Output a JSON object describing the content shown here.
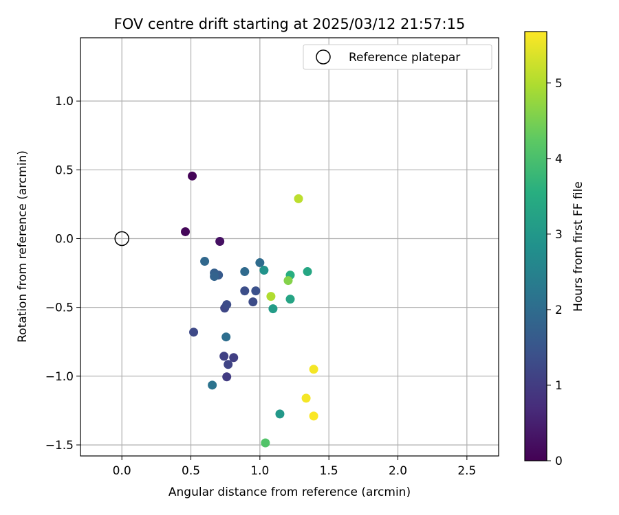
{
  "chart_data": {
    "type": "scatter",
    "title": "FOV centre drift starting at 2025/03/12 21:57:15",
    "xlabel": "Angular distance from reference (arcmin)",
    "ylabel": "Rotation from reference (arcmin)",
    "xlim": [
      -0.3,
      2.73
    ],
    "ylim": [
      -1.58,
      1.46
    ],
    "xticks": [
      0.0,
      0.5,
      1.0,
      1.5,
      2.0,
      2.5
    ],
    "xtick_labels": [
      "0.0",
      "0.5",
      "1.0",
      "1.5",
      "2.0",
      "2.5"
    ],
    "yticks": [
      -1.5,
      -1.0,
      -0.5,
      0.0,
      0.5,
      1.0
    ],
    "ytick_labels": [
      "−1.5",
      "−1.0",
      "−0.5",
      "0.0",
      "0.5",
      "1.0"
    ],
    "grid": true,
    "legend": {
      "position": "top-right",
      "entries": [
        "Reference platepar"
      ]
    },
    "reference_point": {
      "x": 0.0,
      "y": 0.0
    },
    "colorbar": {
      "label": "Hours from first FF file",
      "range": [
        0,
        5.68
      ],
      "ticks": [
        0,
        1,
        2,
        3,
        4,
        5
      ],
      "tick_labels": [
        "0",
        "1",
        "2",
        "3",
        "4",
        "5"
      ],
      "colormap": "viridis"
    },
    "points": [
      {
        "x": 0.51,
        "y": 0.455,
        "hours": 0.05
      },
      {
        "x": 0.46,
        "y": 0.05,
        "hours": 0.1
      },
      {
        "x": 0.71,
        "y": -0.02,
        "hours": 0.25
      },
      {
        "x": 0.76,
        "y": -1.005,
        "hours": 1.0
      },
      {
        "x": 0.81,
        "y": -0.865,
        "hours": 1.05
      },
      {
        "x": 0.74,
        "y": -0.855,
        "hours": 1.1
      },
      {
        "x": 0.77,
        "y": -0.915,
        "hours": 1.15
      },
      {
        "x": 0.52,
        "y": -0.68,
        "hours": 1.25
      },
      {
        "x": 0.745,
        "y": -0.505,
        "hours": 1.2
      },
      {
        "x": 0.76,
        "y": -0.48,
        "hours": 1.3
      },
      {
        "x": 0.95,
        "y": -0.46,
        "hours": 1.3
      },
      {
        "x": 0.89,
        "y": -0.38,
        "hours": 1.35
      },
      {
        "x": 0.97,
        "y": -0.38,
        "hours": 1.4
      },
      {
        "x": 0.7,
        "y": -0.265,
        "hours": 1.6
      },
      {
        "x": 0.67,
        "y": -0.25,
        "hours": 1.7
      },
      {
        "x": 0.67,
        "y": -0.275,
        "hours": 1.8
      },
      {
        "x": 0.6,
        "y": -0.165,
        "hours": 1.9
      },
      {
        "x": 0.89,
        "y": -0.24,
        "hours": 1.95
      },
      {
        "x": 1.0,
        "y": -0.175,
        "hours": 2.0
      },
      {
        "x": 0.755,
        "y": -0.715,
        "hours": 2.05
      },
      {
        "x": 0.655,
        "y": -1.065,
        "hours": 2.15
      },
      {
        "x": 1.03,
        "y": -0.23,
        "hours": 2.9
      },
      {
        "x": 1.145,
        "y": -1.275,
        "hours": 3.0
      },
      {
        "x": 1.095,
        "y": -0.51,
        "hours": 3.1
      },
      {
        "x": 1.22,
        "y": -0.44,
        "hours": 3.3
      },
      {
        "x": 1.345,
        "y": -0.24,
        "hours": 3.35
      },
      {
        "x": 1.22,
        "y": -0.265,
        "hours": 3.55
      },
      {
        "x": 1.04,
        "y": -1.485,
        "hours": 4.1
      },
      {
        "x": 1.205,
        "y": -0.305,
        "hours": 4.6
      },
      {
        "x": 1.08,
        "y": -0.42,
        "hours": 5.0
      },
      {
        "x": 1.28,
        "y": 0.29,
        "hours": 5.1
      },
      {
        "x": 1.39,
        "y": -0.95,
        "hours": 5.6
      },
      {
        "x": 1.335,
        "y": -1.16,
        "hours": 5.6
      },
      {
        "x": 1.39,
        "y": -1.29,
        "hours": 5.65
      }
    ]
  }
}
